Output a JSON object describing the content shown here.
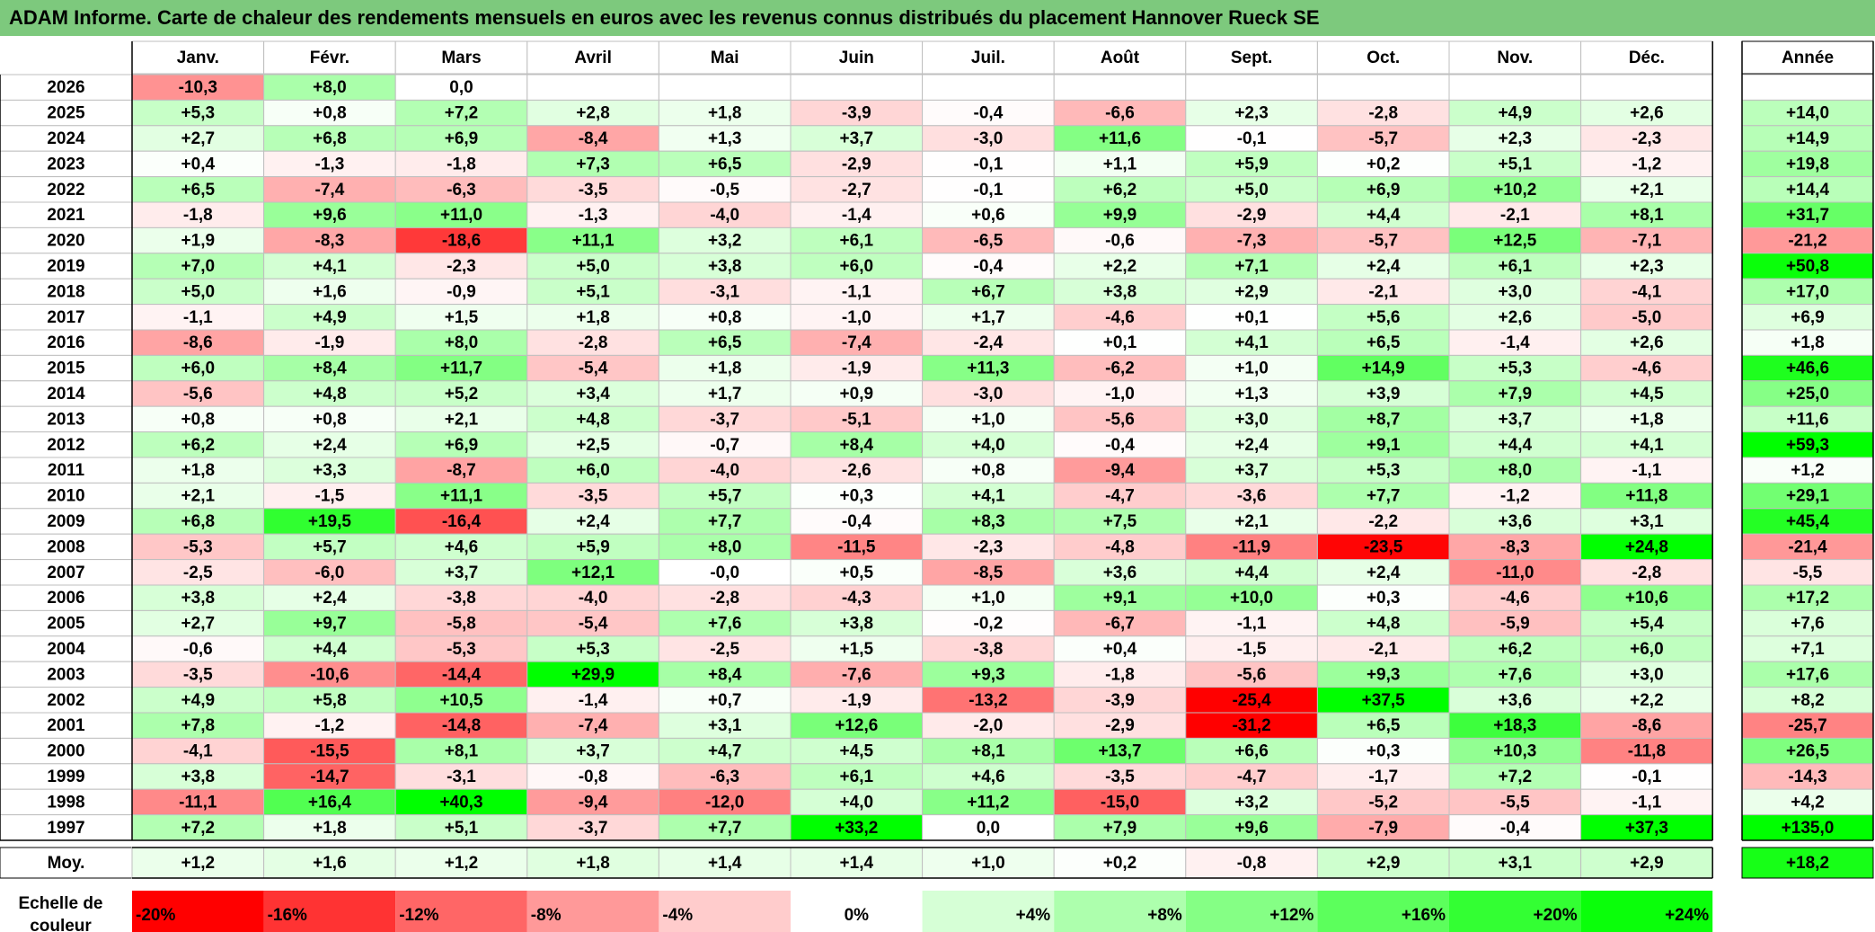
{
  "title": "ADAM Informe. Carte de chaleur des rendements mensuels en euros avec les revenus connus distribués du placement Hannover Rueck SE",
  "chart_data": {
    "type": "heatmap",
    "title": "ADAM Informe. Carte de chaleur des rendements mensuels en euros avec les revenus connus distribués du placement Hannover Rueck SE",
    "months": [
      "Janv.",
      "Févr.",
      "Mars",
      "Avril",
      "Mai",
      "Juin",
      "Juil.",
      "Août",
      "Sept.",
      "Oct.",
      "Nov.",
      "Déc."
    ],
    "year_header": "Année",
    "rows": [
      {
        "year": "2026",
        "months": [
          "-10,3",
          "+8,0",
          "0,0",
          "",
          "",
          "",
          "",
          "",
          "",
          "",
          "",
          ""
        ],
        "annual": ""
      },
      {
        "year": "2025",
        "months": [
          "+5,3",
          "+0,8",
          "+7,2",
          "+2,8",
          "+1,8",
          "-3,9",
          "-0,4",
          "-6,6",
          "+2,3",
          "-2,8",
          "+4,9",
          "+2,6"
        ],
        "annual": "+14,0"
      },
      {
        "year": "2024",
        "months": [
          "+2,7",
          "+6,8",
          "+6,9",
          "-8,4",
          "+1,3",
          "+3,7",
          "-3,0",
          "+11,6",
          "-0,1",
          "-5,7",
          "+2,3",
          "-2,3"
        ],
        "annual": "+14,9"
      },
      {
        "year": "2023",
        "months": [
          "+0,4",
          "-1,3",
          "-1,8",
          "+7,3",
          "+6,5",
          "-2,9",
          "-0,1",
          "+1,1",
          "+5,9",
          "+0,2",
          "+5,1",
          "-1,2"
        ],
        "annual": "+19,8"
      },
      {
        "year": "2022",
        "months": [
          "+6,5",
          "-7,4",
          "-6,3",
          "-3,5",
          "-0,5",
          "-2,7",
          "-0,1",
          "+6,2",
          "+5,0",
          "+6,9",
          "+10,2",
          "+2,1"
        ],
        "annual": "+14,4"
      },
      {
        "year": "2021",
        "months": [
          "-1,8",
          "+9,6",
          "+11,0",
          "-1,3",
          "-4,0",
          "-1,4",
          "+0,6",
          "+9,9",
          "-2,9",
          "+4,4",
          "-2,1",
          "+8,1"
        ],
        "annual": "+31,7"
      },
      {
        "year": "2020",
        "months": [
          "+1,9",
          "-8,3",
          "-18,6",
          "+11,1",
          "+3,2",
          "+6,1",
          "-6,5",
          "-0,6",
          "-7,3",
          "-5,7",
          "+12,5",
          "-7,1"
        ],
        "annual": "-21,2"
      },
      {
        "year": "2019",
        "months": [
          "+7,0",
          "+4,1",
          "-2,3",
          "+5,0",
          "+3,8",
          "+6,0",
          "-0,4",
          "+2,2",
          "+7,1",
          "+2,4",
          "+6,1",
          "+2,3"
        ],
        "annual": "+50,8"
      },
      {
        "year": "2018",
        "months": [
          "+5,0",
          "+1,6",
          "-0,9",
          "+5,1",
          "-3,1",
          "-1,1",
          "+6,7",
          "+3,8",
          "+2,9",
          "-2,1",
          "+3,0",
          "-4,1"
        ],
        "annual": "+17,0"
      },
      {
        "year": "2017",
        "months": [
          "-1,1",
          "+4,9",
          "+1,5",
          "+1,8",
          "+0,8",
          "-1,0",
          "+1,7",
          "-4,6",
          "+0,1",
          "+5,6",
          "+2,6",
          "-5,0"
        ],
        "annual": "+6,9"
      },
      {
        "year": "2016",
        "months": [
          "-8,6",
          "-1,9",
          "+8,0",
          "-2,8",
          "+6,5",
          "-7,4",
          "-2,4",
          "+0,1",
          "+4,1",
          "+6,5",
          "-1,4",
          "+2,6"
        ],
        "annual": "+1,8"
      },
      {
        "year": "2015",
        "months": [
          "+6,0",
          "+8,4",
          "+11,7",
          "-5,4",
          "+1,8",
          "-1,9",
          "+11,3",
          "-6,2",
          "+1,0",
          "+14,9",
          "+5,3",
          "-4,6"
        ],
        "annual": "+46,6"
      },
      {
        "year": "2014",
        "months": [
          "-5,6",
          "+4,8",
          "+5,2",
          "+3,4",
          "+1,7",
          "+0,9",
          "-3,0",
          "-1,0",
          "+1,3",
          "+3,9",
          "+7,9",
          "+4,5"
        ],
        "annual": "+25,0"
      },
      {
        "year": "2013",
        "months": [
          "+0,8",
          "+0,8",
          "+2,1",
          "+4,8",
          "-3,7",
          "-5,1",
          "+1,0",
          "-5,6",
          "+3,0",
          "+8,7",
          "+3,7",
          "+1,8"
        ],
        "annual": "+11,6"
      },
      {
        "year": "2012",
        "months": [
          "+6,2",
          "+2,4",
          "+6,9",
          "+2,5",
          "-0,7",
          "+8,4",
          "+4,0",
          "-0,4",
          "+2,4",
          "+9,1",
          "+4,4",
          "+4,1"
        ],
        "annual": "+59,3"
      },
      {
        "year": "2011",
        "months": [
          "+1,8",
          "+3,3",
          "-8,7",
          "+6,0",
          "-4,0",
          "-2,6",
          "+0,8",
          "-9,4",
          "+3,7",
          "+5,3",
          "+8,0",
          "-1,1"
        ],
        "annual": "+1,2"
      },
      {
        "year": "2010",
        "months": [
          "+2,1",
          "-1,5",
          "+11,1",
          "-3,5",
          "+5,7",
          "+0,3",
          "+4,1",
          "-4,7",
          "-3,6",
          "+7,7",
          "-1,2",
          "+11,8"
        ],
        "annual": "+29,1"
      },
      {
        "year": "2009",
        "months": [
          "+6,8",
          "+19,5",
          "-16,4",
          "+2,4",
          "+7,7",
          "-0,4",
          "+8,3",
          "+7,5",
          "+2,1",
          "-2,2",
          "+3,6",
          "+3,1"
        ],
        "annual": "+45,4"
      },
      {
        "year": "2008",
        "months": [
          "-5,3",
          "+5,7",
          "+4,6",
          "+5,9",
          "+8,0",
          "-11,5",
          "-2,3",
          "-4,8",
          "-11,9",
          "-23,5",
          "-8,3",
          "+24,8"
        ],
        "annual": "-21,4"
      },
      {
        "year": "2007",
        "months": [
          "-2,5",
          "-6,0",
          "+3,7",
          "+12,1",
          "-0,0",
          "+0,5",
          "-8,5",
          "+3,6",
          "+4,4",
          "+2,4",
          "-11,0",
          "-2,8"
        ],
        "annual": "-5,5"
      },
      {
        "year": "2006",
        "months": [
          "+3,8",
          "+2,4",
          "-3,8",
          "-4,0",
          "-2,8",
          "-4,3",
          "+1,0",
          "+9,1",
          "+10,0",
          "+0,3",
          "-4,6",
          "+10,6"
        ],
        "annual": "+17,2"
      },
      {
        "year": "2005",
        "months": [
          "+2,7",
          "+9,7",
          "-5,8",
          "-5,4",
          "+7,6",
          "+3,8",
          "-0,2",
          "-6,7",
          "-1,1",
          "+4,8",
          "-5,9",
          "+5,4"
        ],
        "annual": "+7,6"
      },
      {
        "year": "2004",
        "months": [
          "-0,6",
          "+4,4",
          "-5,3",
          "+5,3",
          "-2,5",
          "+1,5",
          "-3,8",
          "+0,4",
          "-1,5",
          "-2,1",
          "+6,2",
          "+6,0"
        ],
        "annual": "+7,1"
      },
      {
        "year": "2003",
        "months": [
          "-3,5",
          "-10,6",
          "-14,4",
          "+29,9",
          "+8,4",
          "-7,6",
          "+9,3",
          "-1,8",
          "-5,6",
          "+9,3",
          "+7,6",
          "+3,0"
        ],
        "annual": "+17,6"
      },
      {
        "year": "2002",
        "months": [
          "+4,9",
          "+5,8",
          "+10,5",
          "-1,4",
          "+0,7",
          "-1,9",
          "-13,2",
          "-3,9",
          "-25,4",
          "+37,5",
          "+3,6",
          "+2,2"
        ],
        "annual": "+8,2"
      },
      {
        "year": "2001",
        "months": [
          "+7,8",
          "-1,2",
          "-14,8",
          "-7,4",
          "+3,1",
          "+12,6",
          "-2,0",
          "-2,9",
          "-31,2",
          "+6,5",
          "+18,3",
          "-8,6"
        ],
        "annual": "-25,7"
      },
      {
        "year": "2000",
        "months": [
          "-4,1",
          "-15,5",
          "+8,1",
          "+3,7",
          "+4,7",
          "+4,5",
          "+8,1",
          "+13,7",
          "+6,6",
          "+0,3",
          "+10,3",
          "-11,8"
        ],
        "annual": "+26,5"
      },
      {
        "year": "1999",
        "months": [
          "+3,8",
          "-14,7",
          "-3,1",
          "-0,8",
          "-6,3",
          "+6,1",
          "+4,6",
          "-3,5",
          "-4,7",
          "-1,7",
          "+7,2",
          "-0,1"
        ],
        "annual": "-14,3"
      },
      {
        "year": "1998",
        "months": [
          "-11,1",
          "+16,4",
          "+40,3",
          "-9,4",
          "-12,0",
          "+4,0",
          "+11,2",
          "-15,0",
          "+3,2",
          "-5,2",
          "-5,5",
          "-1,1"
        ],
        "annual": "+4,2"
      },
      {
        "year": "1997",
        "months": [
          "+7,2",
          "+1,8",
          "+5,1",
          "-3,7",
          "+7,7",
          "+33,2",
          "0,0",
          "+7,9",
          "+9,6",
          "-7,9",
          "-0,4",
          "+37,3"
        ],
        "annual": "+135,0"
      }
    ],
    "average_row": {
      "label": "Moy.",
      "months": [
        "+1,2",
        "+1,6",
        "+1,2",
        "+1,8",
        "+1,4",
        "+1,4",
        "+1,0",
        "+0,2",
        "-0,8",
        "+2,9",
        "+3,1",
        "+2,9"
      ],
      "annual": "+18,2"
    },
    "scale": {
      "label_line1": "Echelle de",
      "label_line2": "couleur",
      "stops": [
        {
          "label": "-20%",
          "value": -20,
          "color": "#ff0000"
        },
        {
          "label": "-16%",
          "value": -16,
          "color": "#ff3333"
        },
        {
          "label": "-12%",
          "value": -12,
          "color": "#ff6666"
        },
        {
          "label": "-8%",
          "value": -8,
          "color": "#ff9999"
        },
        {
          "label": "-4%",
          "value": -4,
          "color": "#ffcccc"
        },
        {
          "label": "0%",
          "value": 0,
          "color": "#ffffff"
        },
        {
          "label": "+4%",
          "value": 4,
          "color": "#d6ffd6"
        },
        {
          "label": "+8%",
          "value": 8,
          "color": "#adffad"
        },
        {
          "label": "+12%",
          "value": 12,
          "color": "#85ff85"
        },
        {
          "label": "+16%",
          "value": 16,
          "color": "#5cff5c"
        },
        {
          "label": "+20%",
          "value": 20,
          "color": "#33ff33"
        },
        {
          "label": "+24%",
          "value": 24,
          "color": "#0aff0a"
        }
      ]
    },
    "colors": {
      "title_background": "#7dc97d",
      "grid": "#bfbfbf",
      "border": "#000000"
    }
  }
}
